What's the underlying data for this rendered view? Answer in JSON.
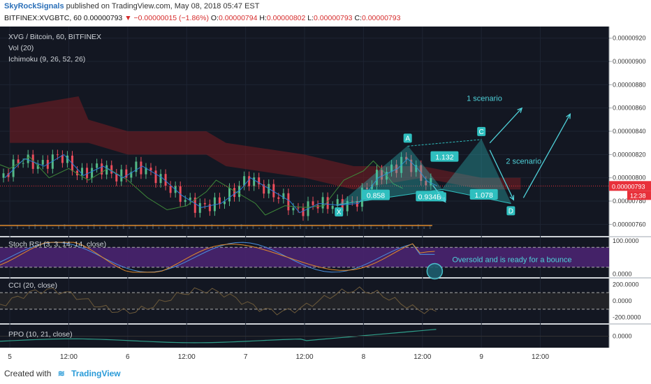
{
  "header": {
    "author": "SkyRockSignals",
    "published": "published on TradingView.com, May 08, 2018 05:47 EST",
    "symbol": "BITFINEX:XVGBTC, 60",
    "last": "0.00000793",
    "change": "−0.00000015 (−1.86%)",
    "o_label": "O:",
    "o": "0.00000794",
    "h_label": "H:",
    "h": "0.00000802",
    "l_label": "L:",
    "l": "0.00000793",
    "c_label": "C:",
    "c": "0.00000793"
  },
  "legend": {
    "main": "XVG / Bitcoin, 60, BITFINEX",
    "vol": "Vol (20)",
    "ichimoku": "Ichimoku (9, 26, 52, 26)",
    "stoch": "Stoch RSI (3, 3, 14, 14, close)",
    "cci": "CCI (20, close)",
    "ppo": "PPO (10, 21, close)"
  },
  "chart_data": {
    "type": "line",
    "title": "XVG / Bitcoin, 60, BITFINEX",
    "price_axis": {
      "ylim": [
        7.5e-06,
        9.3e-06
      ],
      "ticks": [
        "0.00000920",
        "0.00000900",
        "0.00000880",
        "0.00000860",
        "0.00000840",
        "0.00000820",
        "0.00000800",
        "0.00000780",
        "0.00000760"
      ],
      "tick_values": [
        9.2e-06,
        9e-06,
        8.8e-06,
        8.6e-06,
        8.4e-06,
        8.2e-06,
        8e-06,
        7.8e-06,
        7.6e-06
      ],
      "current_price": "0.00000793",
      "current_value": 7.93e-06,
      "countdown": "12:38"
    },
    "time_axis": {
      "labels": [
        "5",
        "12:00",
        "6",
        "12:00",
        "7",
        "12:00",
        "8",
        "12:00",
        "9",
        "12:00"
      ],
      "hours": [
        0,
        12,
        24,
        36,
        48,
        60,
        72,
        84,
        96,
        108
      ],
      "range_hours": [
        -2,
        122
      ]
    },
    "price_close": [
      {
        "t": -2,
        "v": 8e-06
      },
      {
        "t": 2,
        "v": 8.165e-06
      },
      {
        "t": 6,
        "v": 8.1e-06
      },
      {
        "t": 10,
        "v": 8.2e-06
      },
      {
        "t": 14,
        "v": 8.02e-06
      },
      {
        "t": 18,
        "v": 8.1e-06
      },
      {
        "t": 22,
        "v": 8e-06
      },
      {
        "t": 26,
        "v": 8.1e-06
      },
      {
        "t": 30,
        "v": 8e-06
      },
      {
        "t": 34,
        "v": 7.85e-06
      },
      {
        "t": 38,
        "v": 7.745e-06
      },
      {
        "t": 42,
        "v": 7.78e-06
      },
      {
        "t": 46,
        "v": 7.9e-06
      },
      {
        "t": 48,
        "v": 8e-06
      },
      {
        "t": 52,
        "v": 7.9e-06
      },
      {
        "t": 54,
        "v": 7.85e-06
      },
      {
        "t": 56,
        "v": 7.8e-06
      },
      {
        "t": 58,
        "v": 7.7e-06
      },
      {
        "t": 62,
        "v": 7.78e-06
      },
      {
        "t": 66,
        "v": 7.765e-06
      },
      {
        "t": 70,
        "v": 7.78e-06
      },
      {
        "t": 74,
        "v": 8e-06
      },
      {
        "t": 78,
        "v": 8.08e-06
      },
      {
        "t": 80,
        "v": 8.165e-06
      },
      {
        "t": 82,
        "v": 8.08e-06
      },
      {
        "t": 84,
        "v": 7.97e-06
      },
      {
        "t": 86,
        "v": 7.93e-06
      }
    ],
    "harmonic_points": [
      {
        "label": "X",
        "t": 67,
        "v": 7.77e-06
      },
      {
        "label": "A",
        "t": 81,
        "v": 8.272e-06
      },
      {
        "label": "B",
        "t": 88,
        "v": 7.9e-06
      },
      {
        "label": "C",
        "t": 96,
        "v": 8.329e-06
      },
      {
        "label": "D",
        "t": 102,
        "v": 7.78e-06
      }
    ],
    "ratios": [
      {
        "label": "0.858",
        "t": 74.5,
        "v": 7.85e-06
      },
      {
        "label": "0.934B",
        "t": 85.5,
        "v": 7.84e-06
      },
      {
        "label": "1.132",
        "t": 88.5,
        "v": 8.18e-06
      },
      {
        "label": "1.078",
        "t": 96.5,
        "v": 7.855e-06
      }
    ],
    "annotations": [
      {
        "text": "1 scenario",
        "t": 93,
        "v": 8.66e-06
      },
      {
        "text": "2 scenario",
        "t": 101,
        "v": 8.12e-06
      },
      {
        "text": "Oversold and is ready for a bounce",
        "t": 86,
        "v": null
      }
    ],
    "stoch_rsi": {
      "ticks": [
        "100.0000",
        "0.0000"
      ],
      "tick_values": [
        100,
        0
      ],
      "ylim": [
        -10,
        110
      ]
    },
    "cci": {
      "ticks": [
        "200.0000",
        "0.0000",
        "-200.0000"
      ],
      "tick_values": [
        200,
        0,
        -200
      ],
      "ylim": [
        -270,
        270
      ]
    },
    "ppo": {
      "ticks": [
        "0.0000"
      ],
      "tick_values": [
        0
      ],
      "ylim": [
        -3,
        3
      ]
    }
  },
  "footer": {
    "created_with": "Created with",
    "logo_text": "TradingView"
  },
  "colors": {
    "background": "#131722",
    "bull": "#53b987",
    "bear": "#eb4d5c",
    "cloud_red": "#7a1e22",
    "pattern": "#2fbfbf",
    "annotation": "#4fd1d9",
    "price_tag": "#e8303a",
    "rsi_band": "#4a2470"
  }
}
